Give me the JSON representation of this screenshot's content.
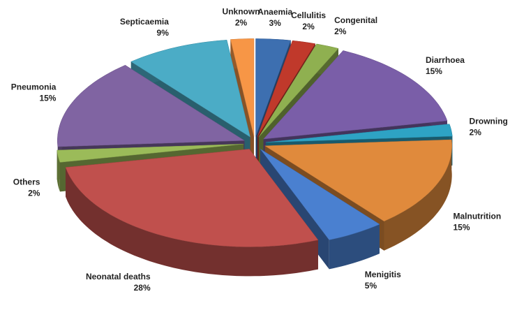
{
  "chart_data": {
    "type": "pie",
    "categories": [
      "Anaemia",
      "Cellulitis",
      "Congenital",
      "Diarrhoea",
      "Drowning",
      "Malnutrition",
      "Menigitis",
      "Neonatal deaths",
      "Others",
      "Pneumonia",
      "Septicaemia",
      "Unknown"
    ],
    "values": [
      3,
      2,
      2,
      15,
      2,
      15,
      5,
      28,
      2,
      15,
      9,
      2
    ],
    "value_labels": [
      "3%",
      "2%",
      "2%",
      "15%",
      "2%",
      "15%",
      "5%",
      "28%",
      "2%",
      "15%",
      "9%",
      "2%"
    ],
    "colors": [
      "#3d6fb0",
      "#c0392b",
      "#8fb050",
      "#7a5ea8",
      "#2ea3c4",
      "#e08a3c",
      "#4a80d0",
      "#c0504d",
      "#9bbb59",
      "#8064a2",
      "#4bacc6",
      "#f79646"
    ]
  }
}
